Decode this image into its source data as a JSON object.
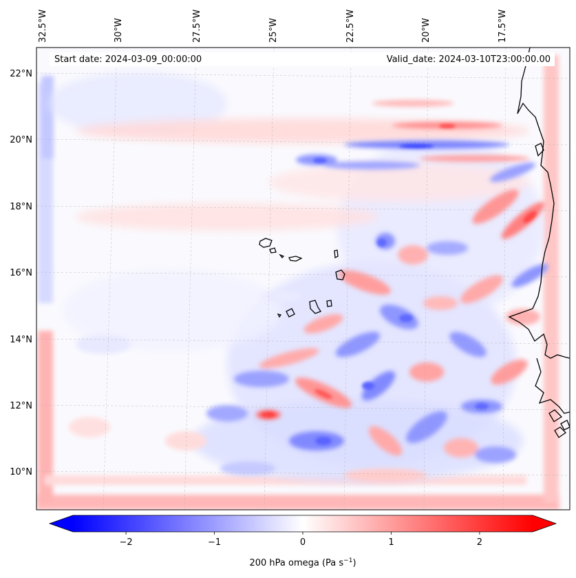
{
  "header": {
    "start_date": "Start date: 2024-03-09_00:00:00",
    "valid_date": "Valid_date: 2024-03-10T23:00:00.00"
  },
  "map": {
    "longitude_labels": [
      "32.5°W",
      "30°W",
      "27.5°W",
      "25°W",
      "22.5°W",
      "20°W",
      "17.5°W"
    ],
    "latitude_labels": [
      "22°N",
      "20°N",
      "18°N",
      "16°N",
      "14°N",
      "12°N",
      "10°N"
    ],
    "field": "200 hPa omega",
    "positive_color": "#ff0000",
    "negative_color": "#0000ff",
    "neutral_color": "#ffffff"
  },
  "colorbar": {
    "tick_labels": [
      "−2",
      "−1",
      "0",
      "1",
      "2"
    ],
    "tick_values": [
      -2,
      -1,
      0,
      1,
      2
    ],
    "range": [
      -2.6,
      2.6
    ],
    "label_main": "200 hPa omega (Pa s",
    "label_exp": "−1",
    "label_end": ")"
  }
}
